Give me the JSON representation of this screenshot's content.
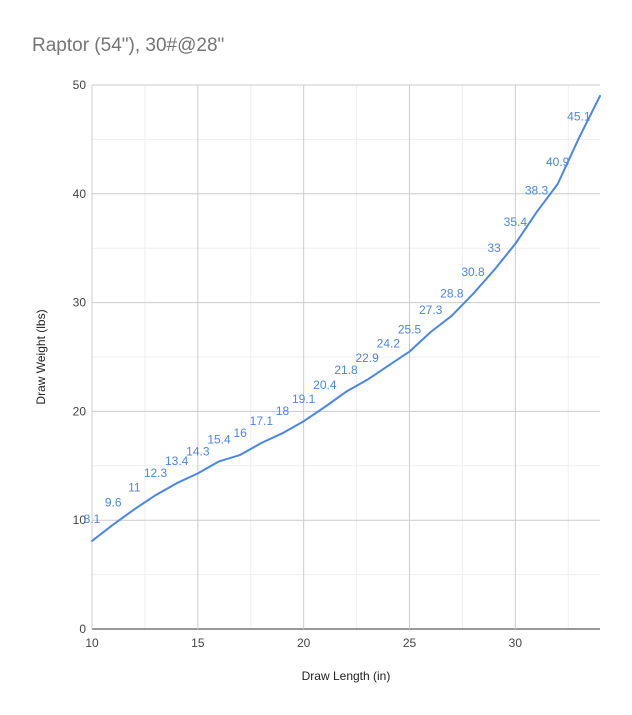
{
  "chart_data": {
    "type": "line",
    "title": "Raptor (54\"), 30#@28\"",
    "xlabel": "Draw Length (in)",
    "ylabel": "Draw Weight (lbs)",
    "xlim": [
      10,
      34
    ],
    "ylim": [
      0,
      50
    ],
    "x_ticks": [
      10,
      15,
      20,
      25,
      30
    ],
    "y_ticks": [
      0,
      10,
      20,
      30,
      40,
      50
    ],
    "grid": true,
    "line_color": "#4a86e8",
    "series": [
      {
        "x": [
          10,
          11,
          12,
          13,
          14,
          15,
          16,
          17,
          18,
          19,
          20,
          21,
          22,
          23,
          24,
          25,
          26,
          27,
          28,
          29,
          30,
          31,
          32,
          33,
          34
        ],
        "y": [
          8.1,
          9.6,
          11,
          12.3,
          13.4,
          14.3,
          15.4,
          16,
          17.1,
          18,
          19.1,
          20.4,
          21.8,
          22.9,
          24.2,
          25.5,
          27.3,
          28.8,
          30.8,
          33,
          35.4,
          38.3,
          40.9,
          45.1,
          49
        ],
        "labels": [
          "8.1",
          "9.6",
          "11",
          "12.3",
          "13.4",
          "14.3",
          "15.4",
          "16",
          "17.1",
          "18",
          "19.1",
          "20.4",
          "21.8",
          "22.9",
          "24.2",
          "25.5",
          "27.3",
          "28.8",
          "30.8",
          "33",
          "35.4",
          "38.3",
          "40.9",
          "45.1",
          ""
        ]
      }
    ]
  }
}
